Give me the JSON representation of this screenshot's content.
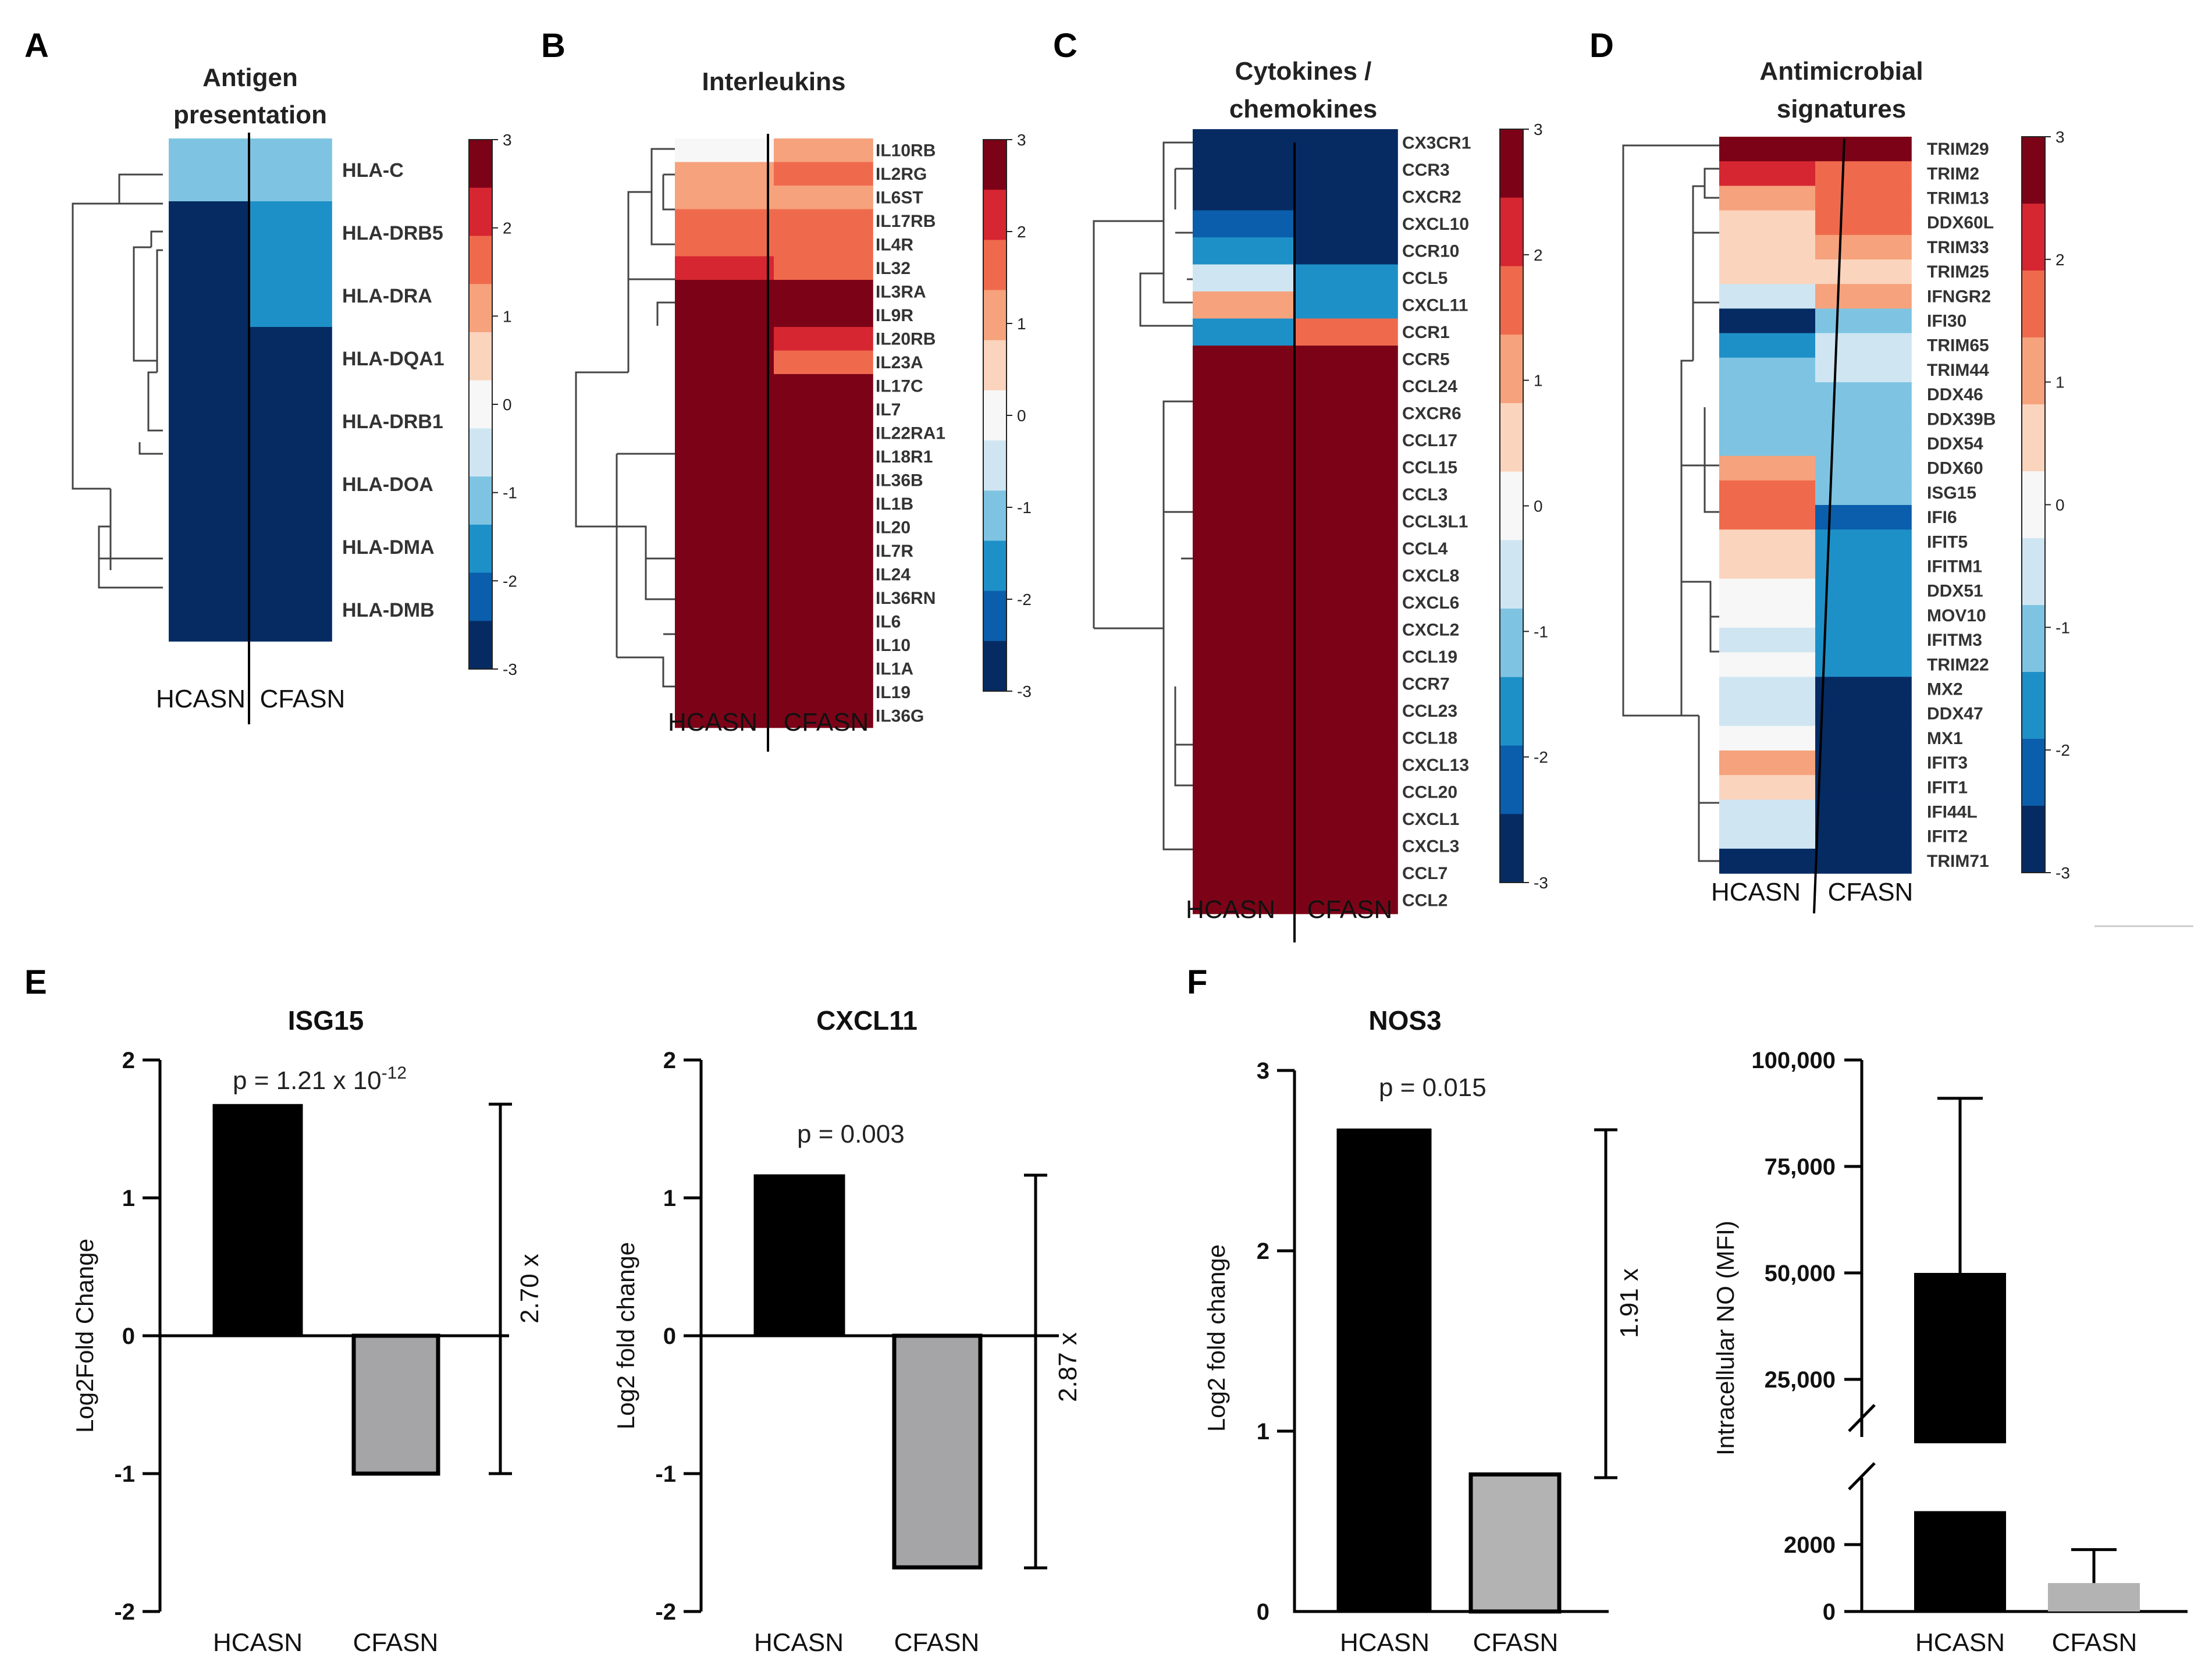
{
  "colors": {
    "scale": [
      "#062b63",
      "#0a5eab",
      "#1e90c8",
      "#7ec4e2",
      "#cfe6f2",
      "#f7f7f7",
      "#fbd4bd",
      "#f6a27c",
      "#ef6a4d",
      "#d62631",
      "#7c0317"
    ],
    "bar_hcasn": "#000000",
    "bar_cfasn": "#a5a5a7",
    "bar_cfasn_light": "#b3b3b3"
  },
  "panels": {
    "A": "A",
    "B": "B",
    "C": "C",
    "D": "D",
    "E": "E",
    "F": "F"
  },
  "group_labels": {
    "hcasn": "HCASN",
    "cfasn": "CFASN"
  },
  "colorbar_ticks": [
    "3",
    "2",
    "1",
    "0",
    "-1",
    "-2",
    "-3"
  ],
  "chart_data": [
    {
      "type": "heatmap",
      "id": "A",
      "title_lines": [
        "Antigen",
        "presentation"
      ],
      "columns": [
        "HCASN",
        "CFASN"
      ],
      "rows": [
        "HLA-C",
        "HLA-DRB5",
        "HLA-DRA",
        "HLA-DQA1",
        "HLA-DRB1",
        "HLA-DOA",
        "HLA-DMA",
        "HLA-DMB"
      ],
      "values": [
        [
          -1,
          -1
        ],
        [
          -3,
          -2
        ],
        [
          -3,
          -2
        ],
        [
          -3,
          -3
        ],
        [
          -3,
          -3
        ],
        [
          -3,
          -3
        ],
        [
          -3,
          -3
        ],
        [
          -3,
          -3
        ]
      ],
      "color_range": [
        -3,
        3
      ]
    },
    {
      "type": "heatmap",
      "id": "B",
      "title_lines": [
        "Interleukins"
      ],
      "columns": [
        "HCASN",
        "CFASN"
      ],
      "rows": [
        "IL10RB",
        "IL2RG",
        "IL6ST",
        "IL17RB",
        "IL4R",
        "IL32",
        "IL3RA",
        "IL9R",
        "IL20RB",
        "IL23A",
        "IL17C",
        "IL7",
        "IL22RA1",
        "IL18R1",
        "IL36B",
        "IL1B",
        "IL20",
        "IL7R",
        "IL24",
        "IL36RN",
        "IL6",
        "IL10",
        "IL1A",
        "IL19",
        "IL36G"
      ],
      "values": [
        [
          0,
          1
        ],
        [
          1,
          1.6
        ],
        [
          1,
          1
        ],
        [
          1.6,
          1.6
        ],
        [
          1.6,
          1.6
        ],
        [
          2.2,
          1.6
        ],
        [
          3,
          3
        ],
        [
          3,
          3
        ],
        [
          3,
          2.3
        ],
        [
          3,
          1.6
        ],
        [
          3,
          3
        ],
        [
          3,
          3
        ],
        [
          3,
          3
        ],
        [
          3,
          3
        ],
        [
          3,
          3
        ],
        [
          3,
          3
        ],
        [
          3,
          3
        ],
        [
          3,
          3
        ],
        [
          3,
          3
        ],
        [
          3,
          3
        ],
        [
          3,
          3
        ],
        [
          3,
          3
        ],
        [
          3,
          3
        ],
        [
          3,
          3
        ],
        [
          3,
          3
        ]
      ],
      "color_range": [
        -3,
        3
      ]
    },
    {
      "type": "heatmap",
      "id": "C",
      "title_lines": [
        "Cytokines /",
        "chemokines"
      ],
      "columns": [
        "HCASN",
        "CFASN"
      ],
      "rows": [
        "CX3CR1",
        "CCR3",
        "CXCR2",
        "CXCL10",
        "CCR10",
        "CCL5",
        "CXCL11",
        "CCR1",
        "CCR5",
        "CCL24",
        "CXCR6",
        "CCL17",
        "CCL15",
        "CCL3",
        "CCL3L1",
        "CCL4",
        "CXCL8",
        "CXCL6",
        "CXCL2",
        "CCL19",
        "CCR7",
        "CCL23",
        "CCL18",
        "CXCL13",
        "CCL20",
        "CXCL1",
        "CXCL3",
        "CCL7",
        "CCL2"
      ],
      "values": [
        [
          -3,
          -3
        ],
        [
          -3,
          -3
        ],
        [
          -3,
          -3
        ],
        [
          -2.3,
          -3
        ],
        [
          -1.6,
          -3
        ],
        [
          -0.5,
          -1.6
        ],
        [
          1,
          -1.6
        ],
        [
          -1.6,
          1.6
        ],
        [
          3,
          3
        ],
        [
          3,
          3
        ],
        [
          3,
          3
        ],
        [
          3,
          3
        ],
        [
          3,
          3
        ],
        [
          3,
          3
        ],
        [
          3,
          3
        ],
        [
          3,
          3
        ],
        [
          3,
          3
        ],
        [
          3,
          3
        ],
        [
          3,
          3
        ],
        [
          3,
          3
        ],
        [
          3,
          3
        ],
        [
          3,
          3
        ],
        [
          3,
          3
        ],
        [
          3,
          3
        ],
        [
          3,
          3
        ],
        [
          3,
          3
        ],
        [
          3,
          3
        ],
        [
          3,
          3
        ],
        [
          3,
          3
        ]
      ],
      "color_range": [
        -3,
        3
      ]
    },
    {
      "type": "heatmap",
      "id": "D",
      "title_lines": [
        "Antimicrobial",
        "signatures"
      ],
      "columns": [
        "HCASN",
        "CFASN"
      ],
      "rows": [
        "TRIM29",
        "TRIM2",
        "TRIM13",
        "DDX60L",
        "TRIM33",
        "TRIM25",
        "IFNGR2",
        "IFI30",
        "TRIM65",
        "TRIM44",
        "DDX46",
        "DDX39B",
        "DDX54",
        "DDX60",
        "ISG15",
        "IFI6",
        "IFIT5",
        "IFITM1",
        "DDX51",
        "MOV10",
        "IFITM3",
        "TRIM22",
        "MX2",
        "DDX47",
        "MX1",
        "IFIT3",
        "IFIT1",
        "IFI44L",
        "IFIT2",
        "TRIM71"
      ],
      "values": [
        [
          3,
          3
        ],
        [
          2.3,
          1.6
        ],
        [
          1,
          1.6
        ],
        [
          0.5,
          1.6
        ],
        [
          0.5,
          1
        ],
        [
          0.5,
          0.5
        ],
        [
          -0.5,
          1
        ],
        [
          -3,
          -1
        ],
        [
          -1.6,
          -0.5
        ],
        [
          -1,
          -0.5
        ],
        [
          -1,
          -1
        ],
        [
          -1,
          -1
        ],
        [
          -1,
          -1
        ],
        [
          1,
          -1
        ],
        [
          1.6,
          -1
        ],
        [
          1.6,
          -2.3
        ],
        [
          0.5,
          -1.6
        ],
        [
          0.5,
          -1.6
        ],
        [
          0,
          -1.6
        ],
        [
          0,
          -1.6
        ],
        [
          -0.5,
          -1.6
        ],
        [
          0,
          -1.6
        ],
        [
          -0.5,
          -3
        ],
        [
          -0.5,
          -3
        ],
        [
          0,
          -3
        ],
        [
          1,
          -3
        ],
        [
          0.5,
          -3
        ],
        [
          -0.5,
          -3
        ],
        [
          -0.5,
          -3
        ],
        [
          -3,
          -3
        ]
      ],
      "color_range": [
        -3,
        3
      ]
    },
    {
      "type": "bar",
      "id": "E-ISG15",
      "title": "ISG15",
      "categories": [
        "HCASN",
        "CFASN"
      ],
      "values": [
        1.67,
        -1.0
      ],
      "ylabel": "Log2Fold Change",
      "ylim": [
        -2,
        2
      ],
      "yticks": [
        "2",
        "1",
        "0",
        "-1",
        "-2"
      ],
      "p_value": "p = 1.21 x 10",
      "p_exp": "-12",
      "fold_label": "2.70 x"
    },
    {
      "type": "bar",
      "id": "E-CXCL11",
      "title": "CXCL11",
      "categories": [
        "HCASN",
        "CFASN"
      ],
      "values": [
        1.16,
        -1.68
      ],
      "ylabel": "Log2 fold change",
      "ylim": [
        -2,
        2
      ],
      "yticks": [
        "2",
        "1",
        "0",
        "-1",
        "-2"
      ],
      "p_value": "p = 0.003",
      "fold_label": "2.87 x"
    },
    {
      "type": "bar",
      "id": "F-NOS3",
      "title": "NOS3",
      "categories": [
        "HCASN",
        "CFASN"
      ],
      "values": [
        2.67,
        0.76
      ],
      "ylabel": "Log2 fold change",
      "ylim": [
        0,
        3
      ],
      "yticks": [
        "3",
        "2",
        "1",
        "0"
      ],
      "p_value": "p = 0.015",
      "fold_label": "1.91 x"
    },
    {
      "type": "bar",
      "id": "F-NO",
      "title": "",
      "categories": [
        "HCASN",
        "CFASN"
      ],
      "values": [
        50000,
        850
      ],
      "errors": [
        41000,
        1000
      ],
      "ylabel": "Intracellular NO (MFI)",
      "y_break": [
        3000,
        10000
      ],
      "yticks_upper": [
        "100,000",
        "75,000",
        "50,000",
        "25,000"
      ],
      "yticks_lower": [
        "2000",
        "0"
      ]
    }
  ]
}
